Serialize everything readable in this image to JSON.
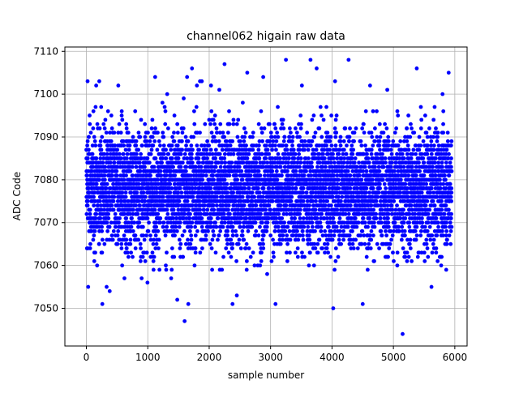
{
  "chart_data": {
    "type": "scatter",
    "title": "channel062 higain raw data",
    "xlabel": "sample number",
    "ylabel": "ADC Code",
    "xlim": [
      -350,
      6200
    ],
    "ylim": [
      7041.2,
      7111.0
    ],
    "xticks": [
      0,
      1000,
      2000,
      3000,
      4000,
      5000,
      6000
    ],
    "yticks": [
      7050,
      7060,
      7070,
      7080,
      7090,
      7100,
      7110
    ],
    "grid": true,
    "marker_color": "#0000ff",
    "series": [
      {
        "values_note": "",
        "n_points": 5950,
        "x_range": [
          0,
          5949
        ],
        "y_center": 7078,
        "y_spread": 7.0,
        "y_min": 7044,
        "y_max": 7108,
        "outliers": [
          [
            20,
            7103
          ],
          [
            30,
            7055
          ],
          [
            160,
            7102
          ],
          [
            210,
            7103
          ],
          [
            260,
            7051
          ],
          [
            330,
            7055
          ],
          [
            380,
            7054
          ],
          [
            520,
            7102
          ],
          [
            620,
            7057
          ],
          [
            900,
            7057
          ],
          [
            1120,
            7104
          ],
          [
            1390,
            7059
          ],
          [
            1480,
            7052
          ],
          [
            1600,
            7047
          ],
          [
            1640,
            7104
          ],
          [
            1660,
            7051
          ],
          [
            1720,
            7106
          ],
          [
            1800,
            7102
          ],
          [
            1850,
            7103
          ],
          [
            1880,
            7103
          ],
          [
            2030,
            7102
          ],
          [
            2250,
            7107
          ],
          [
            2380,
            7051
          ],
          [
            2450,
            7053
          ],
          [
            2620,
            7105
          ],
          [
            2880,
            7104
          ],
          [
            3080,
            7051
          ],
          [
            3250,
            7108
          ],
          [
            3510,
            7102
          ],
          [
            3650,
            7108
          ],
          [
            3750,
            7106
          ],
          [
            4020,
            7050
          ],
          [
            4050,
            7103
          ],
          [
            4270,
            7108
          ],
          [
            4500,
            7051
          ],
          [
            4620,
            7102
          ],
          [
            4900,
            7101
          ],
          [
            5150,
            7044
          ],
          [
            5380,
            7106
          ],
          [
            5620,
            7055
          ],
          [
            5800,
            7100
          ],
          [
            5900,
            7105
          ]
        ]
      }
    ]
  }
}
